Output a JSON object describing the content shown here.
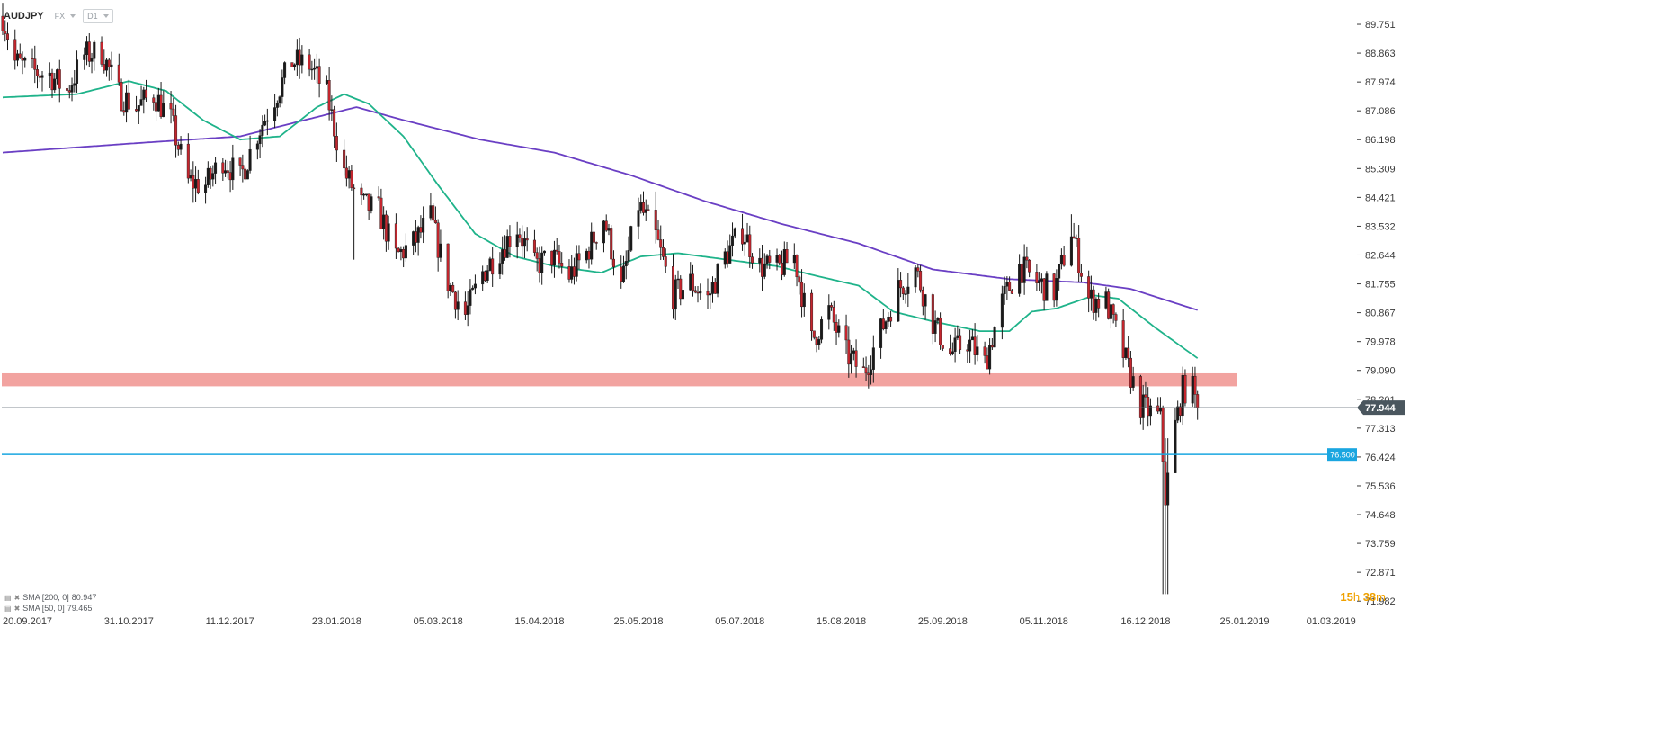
{
  "header": {
    "symbol": "AUDJPY",
    "market": "FX",
    "interval": "D1"
  },
  "legend": [
    {
      "label": "SMA [200, 0]",
      "value": "80.947"
    },
    {
      "label": "SMA [50, 0]",
      "value": "79.465"
    }
  ],
  "timer": {
    "hours": "15",
    "hours_unit": "h",
    "minutes": "38",
    "minutes_unit": "m"
  },
  "colors": {
    "bull": "#1a1a1a",
    "bear": "#c4262e",
    "sma50": "#1fb38a",
    "sma200": "#6a3fc4",
    "zone": "#f2a3a0",
    "price_line": "#5b6870",
    "level_line": "#1aa6e0",
    "price_tag": "#4a565e",
    "level_tag": "#1aa6e0",
    "timer": "#f0a100"
  },
  "chart_data": {
    "type": "candlestick",
    "ylim": [
      71.6,
      90.5
    ],
    "x_range": [
      "2017-09-20",
      "2019-03-20"
    ],
    "last_date": "2019-01-16",
    "y_ticks": [
      "89.751",
      "88.863",
      "87.974",
      "87.086",
      "86.198",
      "85.309",
      "84.421",
      "83.532",
      "82.644",
      "81.755",
      "80.867",
      "79.978",
      "79.090",
      "78.201",
      "77.313",
      "76.424",
      "75.536",
      "74.648",
      "73.759",
      "72.871",
      "71.982"
    ],
    "x_ticks": [
      {
        "date": "2017-09-20",
        "label": "20.09.2017"
      },
      {
        "date": "2017-10-31",
        "label": "31.10.2017"
      },
      {
        "date": "2017-12-11",
        "label": "11.12.2017"
      },
      {
        "date": "2018-01-23",
        "label": "23.01.2018"
      },
      {
        "date": "2018-03-05",
        "label": "05.03.2018"
      },
      {
        "date": "2018-04-15",
        "label": "15.04.2018"
      },
      {
        "date": "2018-05-25",
        "label": "25.05.2018"
      },
      {
        "date": "2018-07-05",
        "label": "05.07.2018"
      },
      {
        "date": "2018-08-15",
        "label": "15.08.2018"
      },
      {
        "date": "2018-09-25",
        "label": "25.09.2018"
      },
      {
        "date": "2018-11-05",
        "label": "05.11.2018"
      },
      {
        "date": "2018-12-16",
        "label": "16.12.2018"
      },
      {
        "date": "2019-01-25",
        "label": "25.01.2019"
      },
      {
        "date": "2019-03-01",
        "label": "01.03.2019"
      }
    ],
    "current_price": "77.944",
    "level": "76.500",
    "zone": [
      78.6,
      79.0
    ],
    "close_path": [
      [
        "2017-09-20",
        90.0
      ],
      [
        "2017-09-25",
        88.6
      ],
      [
        "2017-10-02",
        88.3
      ],
      [
        "2017-10-09",
        88.2
      ],
      [
        "2017-10-16",
        87.7
      ],
      [
        "2017-10-23",
        88.8
      ],
      [
        "2017-10-30",
        88.9
      ],
      [
        "2017-11-06",
        87.6
      ],
      [
        "2017-11-13",
        87.2
      ],
      [
        "2017-11-20",
        87.6
      ],
      [
        "2017-11-27",
        86.8
      ],
      [
        "2017-12-04",
        84.9
      ],
      [
        "2017-12-11",
        84.8
      ],
      [
        "2017-12-18",
        85.6
      ],
      [
        "2017-12-25",
        85.0
      ],
      [
        "2018-01-01",
        86.4
      ],
      [
        "2018-01-08",
        87.5
      ],
      [
        "2018-01-15",
        88.6
      ],
      [
        "2018-01-22",
        88.5
      ],
      [
        "2018-01-29",
        87.6
      ],
      [
        "2018-02-05",
        85.2
      ],
      [
        "2018-02-12",
        84.2
      ],
      [
        "2018-02-19",
        84.0
      ],
      [
        "2018-02-26",
        82.6
      ],
      [
        "2018-03-05",
        83.0
      ],
      [
        "2018-03-12",
        83.8
      ],
      [
        "2018-03-19",
        81.8
      ],
      [
        "2018-03-26",
        80.8
      ],
      [
        "2018-04-02",
        82.1
      ],
      [
        "2018-04-09",
        82.8
      ],
      [
        "2018-04-16",
        83.5
      ],
      [
        "2018-04-23",
        82.3
      ],
      [
        "2018-04-30",
        82.6
      ],
      [
        "2018-05-07",
        82.0
      ],
      [
        "2018-05-14",
        82.7
      ],
      [
        "2018-05-21",
        83.8
      ],
      [
        "2018-05-28",
        81.6
      ],
      [
        "2018-06-04",
        84.2
      ],
      [
        "2018-06-11",
        83.2
      ],
      [
        "2018-06-18",
        81.4
      ],
      [
        "2018-06-25",
        81.8
      ],
      [
        "2018-07-02",
        81.3
      ],
      [
        "2018-07-09",
        82.6
      ],
      [
        "2018-07-16",
        83.4
      ],
      [
        "2018-07-23",
        82.3
      ],
      [
        "2018-07-30",
        82.2
      ],
      [
        "2018-08-06",
        82.6
      ],
      [
        "2018-08-13",
        80.0
      ],
      [
        "2018-08-20",
        80.9
      ],
      [
        "2018-08-27",
        79.6
      ],
      [
        "2018-09-03",
        79.0
      ],
      [
        "2018-09-10",
        80.3
      ],
      [
        "2018-09-17",
        81.6
      ],
      [
        "2018-09-24",
        82.2
      ],
      [
        "2018-10-01",
        80.6
      ],
      [
        "2018-10-08",
        79.6
      ],
      [
        "2018-10-15",
        80.0
      ],
      [
        "2018-10-22",
        79.3
      ],
      [
        "2018-10-29",
        81.2
      ],
      [
        "2018-11-05",
        82.3
      ],
      [
        "2018-11-12",
        81.8
      ],
      [
        "2018-11-19",
        81.5
      ],
      [
        "2018-11-26",
        83.4
      ],
      [
        "2018-12-03",
        81.3
      ],
      [
        "2018-12-10",
        81.2
      ],
      [
        "2018-12-17",
        79.6
      ],
      [
        "2018-12-24",
        78.0
      ],
      [
        "2019-01-01",
        77.6
      ],
      [
        "2019-01-03",
        75.2
      ],
      [
        "2019-01-07",
        77.4
      ],
      [
        "2019-01-10",
        78.5
      ],
      [
        "2019-01-14",
        78.5
      ],
      [
        "2019-01-16",
        77.944
      ]
    ],
    "sma50_path": [
      [
        "2017-09-20",
        87.5
      ],
      [
        "2017-10-20",
        87.6
      ],
      [
        "2017-11-10",
        88.0
      ],
      [
        "2017-11-25",
        87.7
      ],
      [
        "2017-12-10",
        86.8
      ],
      [
        "2017-12-25",
        86.2
      ],
      [
        "2018-01-10",
        86.3
      ],
      [
        "2018-01-25",
        87.2
      ],
      [
        "2018-02-05",
        87.6
      ],
      [
        "2018-02-15",
        87.3
      ],
      [
        "2018-03-01",
        86.3
      ],
      [
        "2018-03-15",
        84.8
      ],
      [
        "2018-03-30",
        83.3
      ],
      [
        "2018-04-15",
        82.6
      ],
      [
        "2018-05-01",
        82.3
      ],
      [
        "2018-05-20",
        82.1
      ],
      [
        "2018-06-05",
        82.6
      ],
      [
        "2018-06-20",
        82.7
      ],
      [
        "2018-07-10",
        82.5
      ],
      [
        "2018-07-30",
        82.3
      ],
      [
        "2018-08-15",
        82.0
      ],
      [
        "2018-09-01",
        81.7
      ],
      [
        "2018-09-15",
        80.9
      ],
      [
        "2018-10-01",
        80.6
      ],
      [
        "2018-10-20",
        80.3
      ],
      [
        "2018-11-01",
        80.3
      ],
      [
        "2018-11-10",
        80.9
      ],
      [
        "2018-11-20",
        81.0
      ],
      [
        "2018-12-05",
        81.4
      ],
      [
        "2018-12-15",
        81.3
      ],
      [
        "2018-12-30",
        80.4
      ],
      [
        "2019-01-16",
        79.465
      ]
    ],
    "sma200_path": [
      [
        "2017-09-20",
        85.8
      ],
      [
        "2017-11-15",
        86.1
      ],
      [
        "2017-12-25",
        86.3
      ],
      [
        "2018-01-20",
        86.8
      ],
      [
        "2018-02-10",
        87.2
      ],
      [
        "2018-03-01",
        86.8
      ],
      [
        "2018-04-01",
        86.2
      ],
      [
        "2018-05-01",
        85.8
      ],
      [
        "2018-06-01",
        85.1
      ],
      [
        "2018-07-01",
        84.3
      ],
      [
        "2018-08-01",
        83.6
      ],
      [
        "2018-09-01",
        83.0
      ],
      [
        "2018-10-01",
        82.2
      ],
      [
        "2018-11-01",
        81.9
      ],
      [
        "2018-12-01",
        81.8
      ],
      [
        "2018-12-20",
        81.6
      ],
      [
        "2019-01-16",
        80.947
      ]
    ],
    "ranges": [
      [
        "2018-02-10",
        84.0,
        82.5
      ],
      [
        "2018-06-10",
        84.6,
        83.0
      ],
      [
        "2018-11-25",
        83.9,
        82.9
      ],
      [
        "2019-01-03",
        77.0,
        72.2
      ],
      [
        "2019-01-14",
        79.2,
        78.0
      ]
    ]
  }
}
